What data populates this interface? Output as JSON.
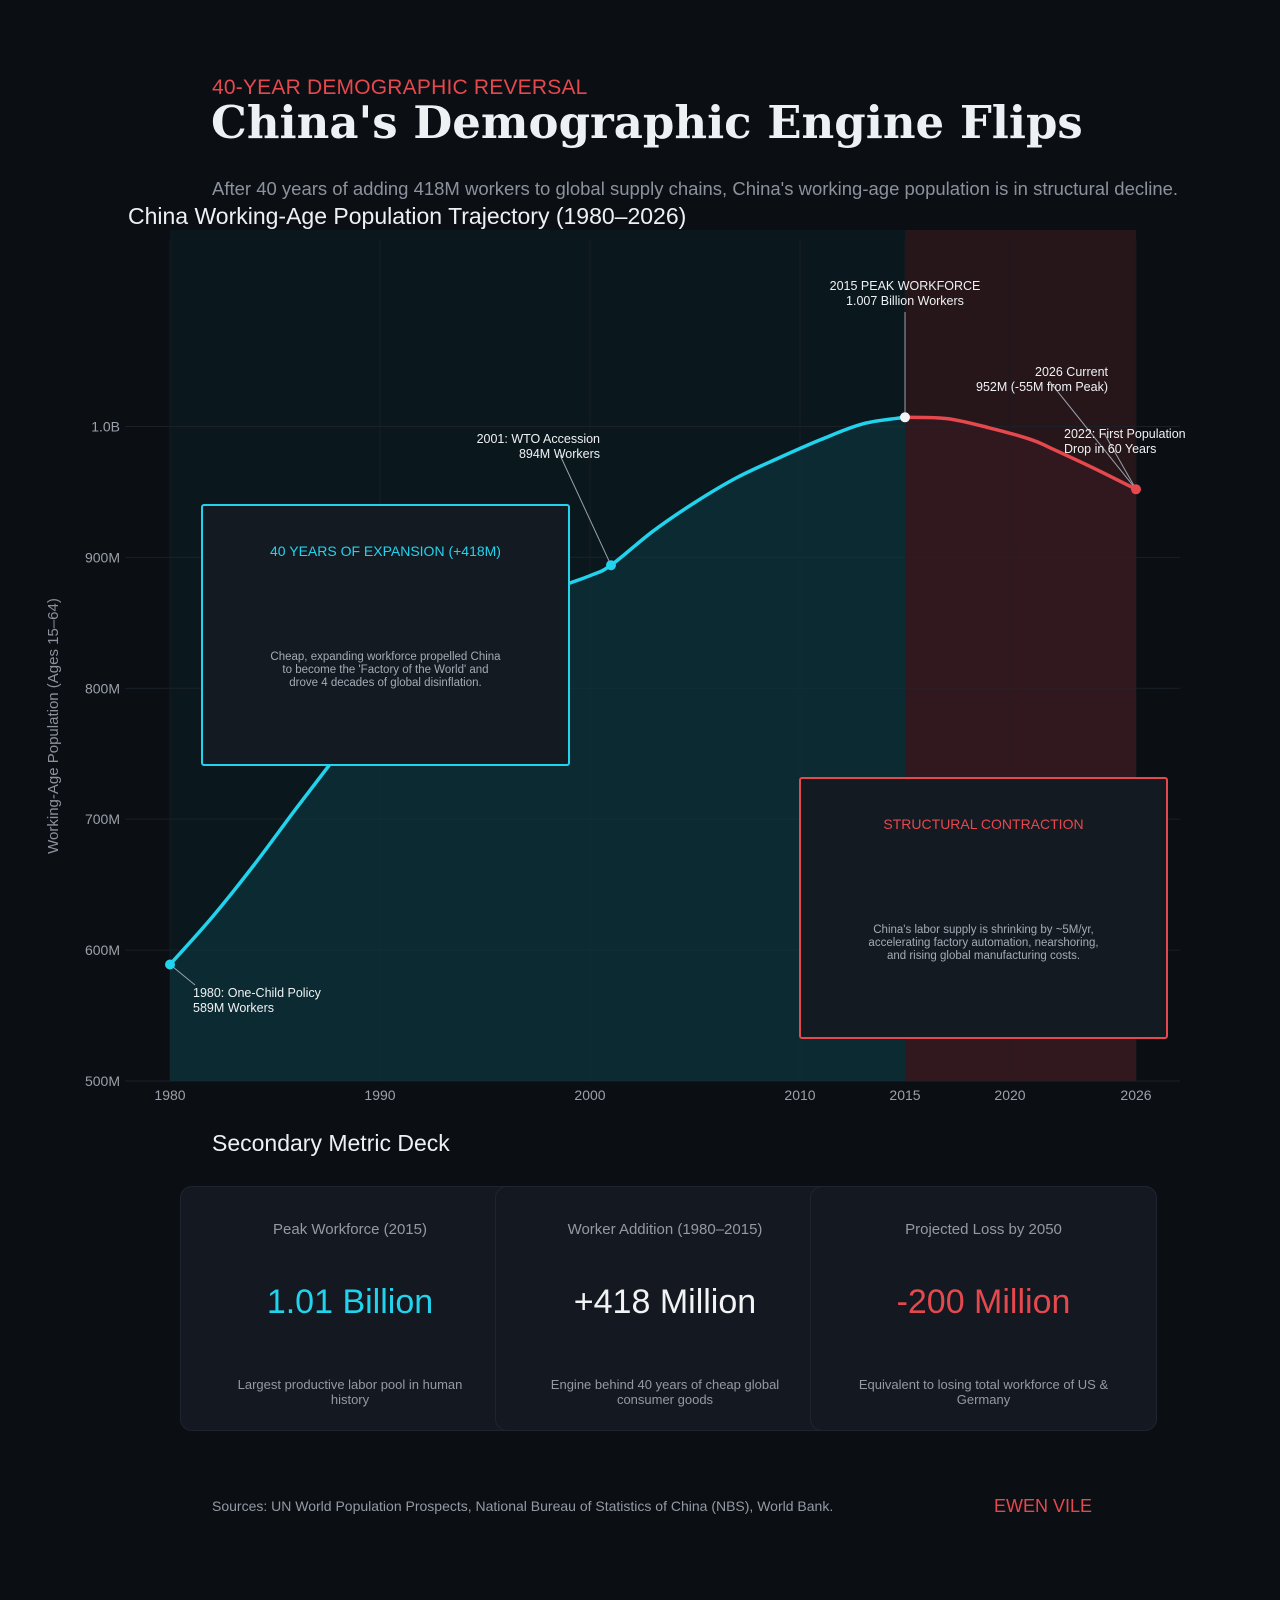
{
  "header": {
    "kicker": "40-YEAR DEMOGRAPHIC REVERSAL",
    "title": "China's Demographic Engine Flips",
    "subtitle": "After 40 years of adding 418M workers to global supply chains, China's working-age population is in structural decline."
  },
  "colors": {
    "accent_cyan": "#22d3ee",
    "accent_red": "#e5484d",
    "background": "#0b0e13",
    "card": "#141820"
  },
  "chart_data": {
    "type": "area",
    "title": "China Working-Age Population Trajectory (1980–2026)",
    "xlabel": "",
    "ylabel": "Working-Age Population (Ages 15–64)",
    "xlim": [
      1980,
      2026
    ],
    "ylim": [
      500,
      1050
    ],
    "x_ticks": [
      1980,
      1990,
      2000,
      2010,
      2015,
      2020,
      2026
    ],
    "y_ticks": [
      {
        "value": 500,
        "label": "500M"
      },
      {
        "value": 600,
        "label": "600M"
      },
      {
        "value": 700,
        "label": "700M"
      },
      {
        "value": 800,
        "label": "800M"
      },
      {
        "value": 900,
        "label": "900M"
      },
      {
        "value": 1000,
        "label": "1.0B"
      }
    ],
    "grid": true,
    "series": [
      {
        "color": "#22d3ee",
        "points": [
          [
            1980,
            589
          ],
          [
            1982,
            625
          ],
          [
            1984,
            665
          ],
          [
            1986,
            708
          ],
          [
            1988,
            750
          ],
          [
            1990,
            792
          ],
          [
            1992,
            815
          ],
          [
            1994,
            838
          ],
          [
            1996,
            857
          ],
          [
            1998,
            874
          ],
          [
            2000,
            886
          ],
          [
            2001,
            894
          ],
          [
            2003,
            920
          ],
          [
            2005,
            942
          ],
          [
            2007,
            961
          ],
          [
            2009,
            976
          ],
          [
            2011,
            990
          ],
          [
            2013,
            1002
          ],
          [
            2015,
            1007
          ]
        ]
      },
      {
        "color": "#e5484d",
        "points": [
          [
            2015,
            1007
          ],
          [
            2017,
            1006
          ],
          [
            2019,
            999
          ],
          [
            2021,
            990
          ],
          [
            2022,
            983
          ],
          [
            2024,
            968
          ],
          [
            2026,
            952
          ]
        ]
      }
    ],
    "shaded_regions": [
      {
        "from": 1980,
        "to": 2015,
        "color": "#0a2a33"
      },
      {
        "from": 2015,
        "to": 2026,
        "color": "#2c171c"
      }
    ],
    "annotations": [
      {
        "x": 1980,
        "y": 589,
        "lines": [
          "1980: One-Child Policy",
          "589M Workers"
        ]
      },
      {
        "x": 2001,
        "y": 894,
        "lines": [
          "2001: WTO Accession",
          "894M Workers"
        ]
      },
      {
        "x": 2015,
        "y": 1007,
        "lines": [
          "2015 PEAK WORKFORCE",
          "1.007 Billion Workers"
        ]
      },
      {
        "x": 2026,
        "y": 952,
        "lines": [
          "2026 Current",
          "952M (-55M from Peak)"
        ]
      },
      {
        "x": 2026,
        "y": 952,
        "lines": [
          "2022: First Population",
          "Drop in 60 Years"
        ]
      }
    ],
    "callouts": [
      {
        "title": "40 YEARS OF EXPANSION (+418M)",
        "body": [
          "Cheap, expanding workforce propelled China",
          "to become the 'Factory of the World' and",
          "drove 4 decades of global disinflation."
        ],
        "color": "#22d3ee"
      },
      {
        "title": "STRUCTURAL CONTRACTION",
        "body": [
          "China's labor supply is shrinking by ~5M/yr,",
          "accelerating factory automation, nearshoring,",
          "and rising global manufacturing costs."
        ],
        "color": "#e5484d"
      }
    ]
  },
  "deck": {
    "title": "Secondary Metric Deck",
    "cards": [
      {
        "label": "Peak Workforce (2015)",
        "value": "1.01 Billion",
        "desc": "Largest productive labor pool in human history",
        "color": "#22d3ee"
      },
      {
        "label": "Worker Addition (1980–2015)",
        "value": "+418 Million",
        "desc": "Engine behind 40 years of cheap global consumer goods",
        "color": "#f1f3f5"
      },
      {
        "label": "Projected Loss by 2050",
        "value": "-200 Million",
        "desc": "Equivalent to losing total workforce of US & Germany",
        "color": "#e5484d"
      }
    ]
  },
  "footer": {
    "sources": "Sources: UN World Population Prospects, National Bureau of Statistics of China (NBS), World Bank.",
    "brand": "EWEN VILE"
  }
}
